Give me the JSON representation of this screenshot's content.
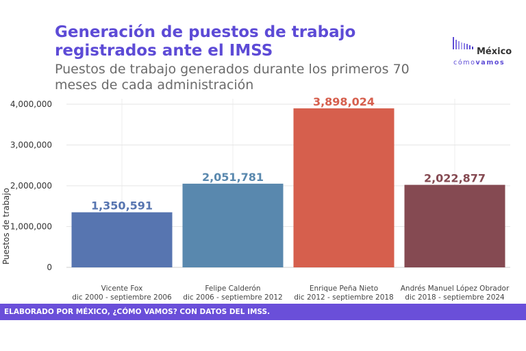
{
  "title": "Generación de puestos de trabajo registrados ante el IMSS",
  "subtitle": "Puestos de trabajo generados durante los primeros 70 meses de cada administración",
  "logo": {
    "name": "México",
    "tagline_light": "cómo",
    "tagline_bold": "vamos"
  },
  "footer": {
    "credit": "ELABORADO POR MÉXICO, ¿CÓMO VAMOS? CON DATOS DEL IMSS."
  },
  "chart_data": {
    "type": "bar",
    "title": "Generación de puestos de trabajo registrados ante el IMSS",
    "subtitle": "Puestos de trabajo generados durante los primeros 70 meses de cada administración",
    "ylabel": "Puestos de trabajo",
    "xlabel": "",
    "ylim": [
      0,
      4000000
    ],
    "yticks": [
      0,
      1000000,
      2000000,
      3000000,
      4000000
    ],
    "ytick_labels": [
      "0",
      "1,000,000",
      "2,000,000",
      "3,000,000",
      "4,000,000"
    ],
    "grid": true,
    "legend": "none",
    "categories": [
      {
        "name": "Vicente Fox",
        "period": "dic 2000 - septiembre 2006"
      },
      {
        "name": "Felipe Calderón",
        "period": "dic 2006 - septiembre 2012"
      },
      {
        "name": "Enrique Peña Nieto",
        "period": "dic 2012 - septiembre 2018"
      },
      {
        "name": "Andrés Manuel López Obrador",
        "period": "dic 2018 - septiembre 2024"
      }
    ],
    "values": [
      1350591,
      2051781,
      3898024,
      2022877
    ],
    "value_labels": [
      "1,350,591",
      "2,051,781",
      "3,898,024",
      "2,022,877"
    ],
    "colors": [
      "#5775b0",
      "#5988ae",
      "#d65f4d",
      "#854a52"
    ]
  }
}
